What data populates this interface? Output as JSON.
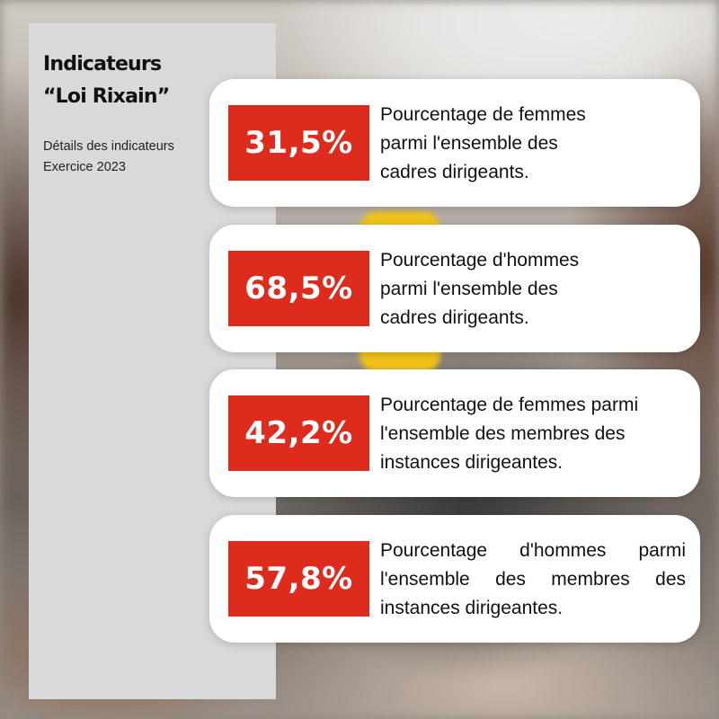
{
  "panel": {
    "title": [
      "Indicateurs",
      "“Loi Rixain”"
    ],
    "subtitle": [
      "Détails des indicateurs",
      "Exercice 2023"
    ]
  },
  "accent_color": "#dd2b1e",
  "panel_color": "#d9d9d9",
  "indicators": [
    {
      "value": "31,5%",
      "lines": [
        "Pourcentage de femmes",
        "parmi l'ensemble des",
        "cadres dirigeants."
      ]
    },
    {
      "value": "68,5%",
      "lines": [
        "Pourcentage d'hommes",
        "parmi l'ensemble des",
        "cadres dirigeants."
      ]
    },
    {
      "value": "42,2%",
      "lines": [
        "Pourcentage de femmes parmi",
        "l'ensemble des membres des",
        "instances dirigeantes."
      ]
    },
    {
      "value": "57,8%",
      "lines": [
        "Pourcentage d'hommes parmi",
        "l'ensemble des membres des",
        "instances dirigeantes."
      ]
    }
  ]
}
